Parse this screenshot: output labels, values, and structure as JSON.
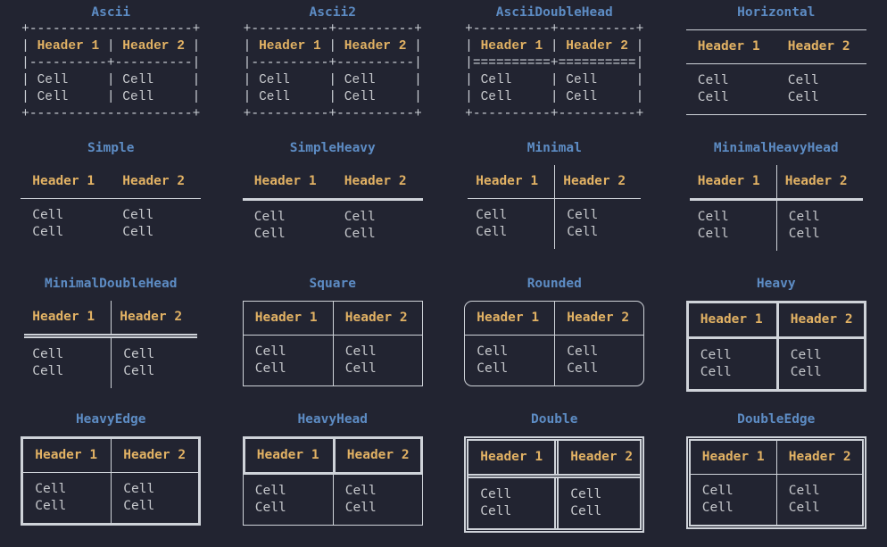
{
  "palette": {
    "background": "#222431",
    "title_color": "#5d8cc4",
    "header_color": "#e2b264",
    "cell_color": "#c6c8cc",
    "border_color": "#cfd3d9"
  },
  "content": {
    "header_cells": [
      "Header 1",
      "Header 2"
    ],
    "body_rows": [
      [
        "Cell",
        "Cell"
      ],
      [
        "Cell",
        "Cell"
      ]
    ]
  },
  "ascii_parts": {
    "v_edge_left": "| ",
    "v_mid": " | ",
    "v_edge_right": " |"
  },
  "ascii_borders": {
    "ascii": {
      "top": "+---------------------+",
      "separator": "|----------+----------|",
      "bottom": "+---------------------+"
    },
    "ascii2": {
      "top": "+----------+----------+",
      "separator": "|----------+----------|",
      "bottom": "+----------+----------+"
    },
    "asciidoublehead": {
      "top": "+----------+----------+",
      "separator": "|==========+==========|",
      "bottom": "+----------+----------+"
    }
  },
  "tables": [
    {
      "title": "Ascii",
      "style": "ascii",
      "kind": "ascii"
    },
    {
      "title": "Ascii2",
      "style": "ascii2",
      "kind": "ascii"
    },
    {
      "title": "AsciiDoubleHead",
      "style": "asciidoublehead",
      "kind": "ascii"
    },
    {
      "title": "Horizontal",
      "style": "horizontal",
      "kind": "box"
    },
    {
      "title": "Simple",
      "style": "simple",
      "kind": "box"
    },
    {
      "title": "SimpleHeavy",
      "style": "simpleheavy",
      "kind": "box"
    },
    {
      "title": "Minimal",
      "style": "minimal",
      "kind": "box"
    },
    {
      "title": "MinimalHeavyHead",
      "style": "minimalheavyhead",
      "kind": "box"
    },
    {
      "title": "MinimalDoubleHead",
      "style": "minimaldoublehead",
      "kind": "box"
    },
    {
      "title": "Square",
      "style": "square",
      "kind": "box"
    },
    {
      "title": "Rounded",
      "style": "rounded",
      "kind": "box"
    },
    {
      "title": "Heavy",
      "style": "heavy",
      "kind": "box"
    },
    {
      "title": "HeavyEdge",
      "style": "heavyedge",
      "kind": "box"
    },
    {
      "title": "HeavyHead",
      "style": "heavyhead",
      "kind": "box"
    },
    {
      "title": "Double",
      "style": "double",
      "kind": "box"
    },
    {
      "title": "DoubleEdge",
      "style": "doubleedge",
      "kind": "box"
    }
  ]
}
